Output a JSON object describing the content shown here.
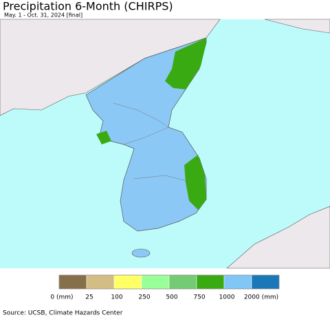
{
  "header": {
    "title": "Precipitation 6-Month (CHIRPS)",
    "subtitle": "May. 1 - Oct. 31, 2024 [final]"
  },
  "legend": {
    "colors": [
      "#86704c",
      "#d2be84",
      "#ffff66",
      "#99ff99",
      "#73cc73",
      "#3aaa12",
      "#80c6f6",
      "#1a78b8"
    ],
    "labels": [
      "0 (mm)",
      "25",
      "100",
      "250",
      "500",
      "750",
      "1000",
      "2000 (mm)"
    ]
  },
  "source": "Source: UCSB, Climate Hazards Center"
}
